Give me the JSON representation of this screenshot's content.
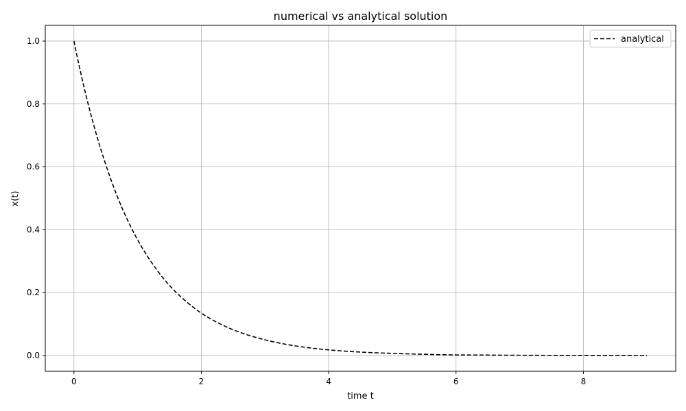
{
  "chart_data": {
    "type": "line",
    "title": "numerical vs analytical solution",
    "xlabel": "time t",
    "ylabel": "x(t)",
    "xlim": [
      -0.45,
      9.45
    ],
    "ylim": [
      -0.05,
      1.05
    ],
    "xticks": [
      0,
      2,
      4,
      6,
      8
    ],
    "yticks": [
      0.0,
      0.2,
      0.4,
      0.6,
      0.8,
      1.0
    ],
    "xtick_labels": [
      "0",
      "2",
      "4",
      "6",
      "8"
    ],
    "ytick_labels": [
      "0.0",
      "0.2",
      "0.4",
      "0.6",
      "0.8",
      "1.0"
    ],
    "grid": true,
    "legend_position": "top-right",
    "series": [
      {
        "name": "analytical",
        "color": "#000000",
        "style": "dashed",
        "x": [
          0,
          0.25,
          0.5,
          0.75,
          1,
          1.25,
          1.5,
          1.75,
          2,
          2.5,
          3,
          3.5,
          4,
          4.5,
          5,
          5.5,
          6,
          6.5,
          7,
          7.5,
          8,
          8.5,
          9
        ],
        "y": [
          1.0,
          0.779,
          0.607,
          0.472,
          0.368,
          0.287,
          0.223,
          0.174,
          0.135,
          0.082,
          0.05,
          0.03,
          0.018,
          0.011,
          0.007,
          0.004,
          0.002,
          0.0015,
          0.0009,
          0.0006,
          0.0003,
          0.0002,
          0.0001
        ]
      }
    ]
  }
}
